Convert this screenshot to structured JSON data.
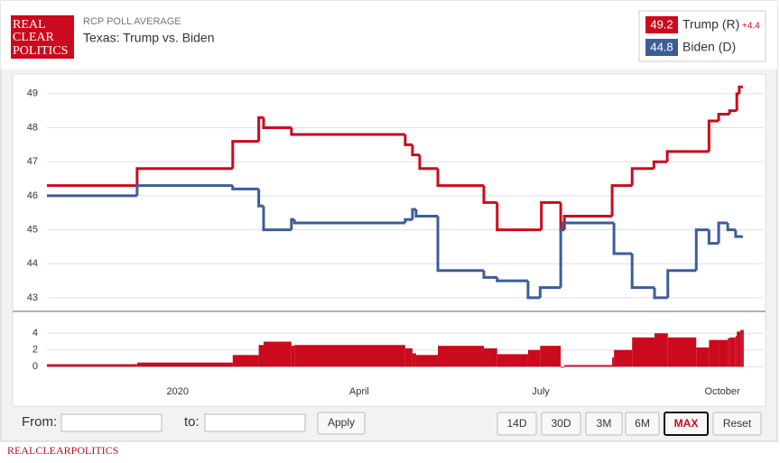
{
  "header": {
    "logo": [
      "REAL",
      "CLEAR",
      "POLITICS"
    ],
    "kicker": "RCP POLL AVERAGE",
    "title": "Texas: Trump vs. Biden"
  },
  "chart_data": [
    {
      "type": "line",
      "grid": true,
      "xlim": [
        -2.16,
        9.67
      ],
      "ylim": [
        42.6,
        49.5
      ],
      "yticks": [
        43,
        44,
        45,
        46,
        47,
        48,
        49
      ],
      "spread": 4.4,
      "spread_label": "+4.4",
      "series": [
        {
          "name": "Trump (R)",
          "color": "#cc0a1d",
          "current": 49.2,
          "x": [
            -2.16,
            -0.67,
            0.91,
            1.34,
            1.42,
            1.88,
            3.76,
            3.88,
            4.0,
            4.3,
            5.06,
            5.28,
            6.01,
            6.33,
            6.39,
            7.18,
            7.51,
            7.87,
            8.09,
            8.78,
            8.94,
            9.12,
            9.24,
            9.28,
            9.3,
            9.34
          ],
          "values": [
            46.3,
            46.8,
            47.6,
            48.3,
            48.0,
            47.8,
            47.5,
            47.2,
            46.8,
            46.3,
            45.8,
            45.0,
            45.8,
            45.0,
            45.4,
            46.3,
            46.8,
            47.0,
            47.3,
            48.2,
            48.4,
            48.5,
            49.0,
            49.2,
            49.2,
            49.2
          ]
        },
        {
          "name": "Biden (D)",
          "color": "#3d5d99",
          "current": 44.8,
          "x": [
            -2.16,
            -0.67,
            0.91,
            1.34,
            1.42,
            1.88,
            1.93,
            3.76,
            3.88,
            3.94,
            4.3,
            5.06,
            5.28,
            5.79,
            5.99,
            6.33,
            6.36,
            7.21,
            7.51,
            7.88,
            8.1,
            8.57,
            8.78,
            8.94,
            9.09,
            9.22,
            9.34
          ],
          "values": [
            46.0,
            46.3,
            46.2,
            45.7,
            45.0,
            45.3,
            45.2,
            45.3,
            45.6,
            45.4,
            43.8,
            43.6,
            43.5,
            43.0,
            43.3,
            45.0,
            45.2,
            44.3,
            43.3,
            43.0,
            43.8,
            45.0,
            44.6,
            45.2,
            45.0,
            44.8,
            44.8
          ]
        }
      ]
    },
    {
      "type": "area",
      "color": "#cc0a1d",
      "xlim": [
        -2.16,
        9.67
      ],
      "ylim": [
        -4.5,
        5
      ],
      "yticks": [
        0,
        2,
        4
      ],
      "xticks": [
        {
          "value": 0,
          "label": "2020"
        },
        {
          "value": 3,
          "label": "April"
        },
        {
          "value": 6,
          "label": "July"
        },
        {
          "value": 9,
          "label": "October"
        }
      ],
      "x": [
        -2.16,
        -0.67,
        0.91,
        1.34,
        1.42,
        1.88,
        1.93,
        3.76,
        3.88,
        3.94,
        4.3,
        5.06,
        5.28,
        5.79,
        5.99,
        6.33,
        6.39,
        7.18,
        7.21,
        7.51,
        7.88,
        8.1,
        8.57,
        8.78,
        8.94,
        9.09,
        9.12,
        9.22,
        9.24,
        9.3,
        9.34
      ],
      "values": [
        0.3,
        0.5,
        1.4,
        2.6,
        3.0,
        2.5,
        2.6,
        2.2,
        1.6,
        1.4,
        2.5,
        2.2,
        1.5,
        2.0,
        2.5,
        0,
        0.2,
        1.1,
        2.0,
        3.5,
        4.0,
        3.5,
        2.3,
        3.2,
        3.2,
        3.4,
        3.5,
        3.7,
        4.2,
        4.4,
        4.4
      ]
    }
  ],
  "controls": {
    "from": "From:",
    "to": "to:",
    "apply": "Apply",
    "ranges": [
      "14D",
      "30D",
      "3M",
      "6M",
      "MAX",
      "Reset"
    ]
  },
  "footer": "REALCLEARPOLITICS"
}
